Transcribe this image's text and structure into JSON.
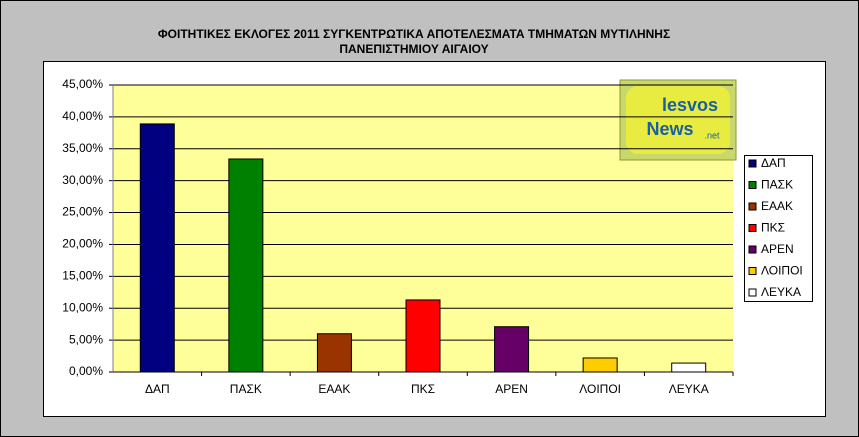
{
  "chart_data": {
    "type": "bar",
    "title": [
      "ΦΟΙΤΗΤΙΚΕΣ ΕΚΛΟΓΕΣ 2011 ΣΥΓΚΕΝΤΡΩΤΙΚΑ ΑΠΟΤΕΛΕΣΜΑΤΑ ΤΜΗΜΑΤΩΝ ΜΥΤΙΛΗΝΗΣ",
      "ΠΑΝΕΠΙΣΤΗΜΙΟΥ ΑΙΓΑΙΟΥ"
    ],
    "categories": [
      "ΔΑΠ",
      "ΠΑΣΚ",
      "ΕΑΑΚ",
      "ΠΚΣ",
      "ΑΡΕΝ",
      "ΛΟΙΠΟΙ",
      "ΛΕΥΚΑ"
    ],
    "values": [
      38.9,
      33.4,
      6.0,
      11.3,
      7.1,
      2.2,
      1.4
    ],
    "colors": [
      "#000080",
      "#008000",
      "#993300",
      "#ff0000",
      "#660066",
      "#ffcc00",
      "#ffffff"
    ],
    "ylim": [
      0,
      45
    ],
    "yticks": [
      {
        "value": 0,
        "label": "0,00%"
      },
      {
        "value": 5,
        "label": "5,00%"
      },
      {
        "value": 10,
        "label": "10,00%"
      },
      {
        "value": 15,
        "label": "15,00%"
      },
      {
        "value": 20,
        "label": "20,00%"
      },
      {
        "value": 25,
        "label": "25,00%"
      },
      {
        "value": 30,
        "label": "30,00%"
      },
      {
        "value": 35,
        "label": "35,00%"
      },
      {
        "value": 40,
        "label": "40,00%"
      },
      {
        "value": 45,
        "label": "45,00%"
      }
    ],
    "grid": true,
    "legend": "right",
    "annotations": [
      "lesvos",
      "News",
      ".net"
    ]
  }
}
